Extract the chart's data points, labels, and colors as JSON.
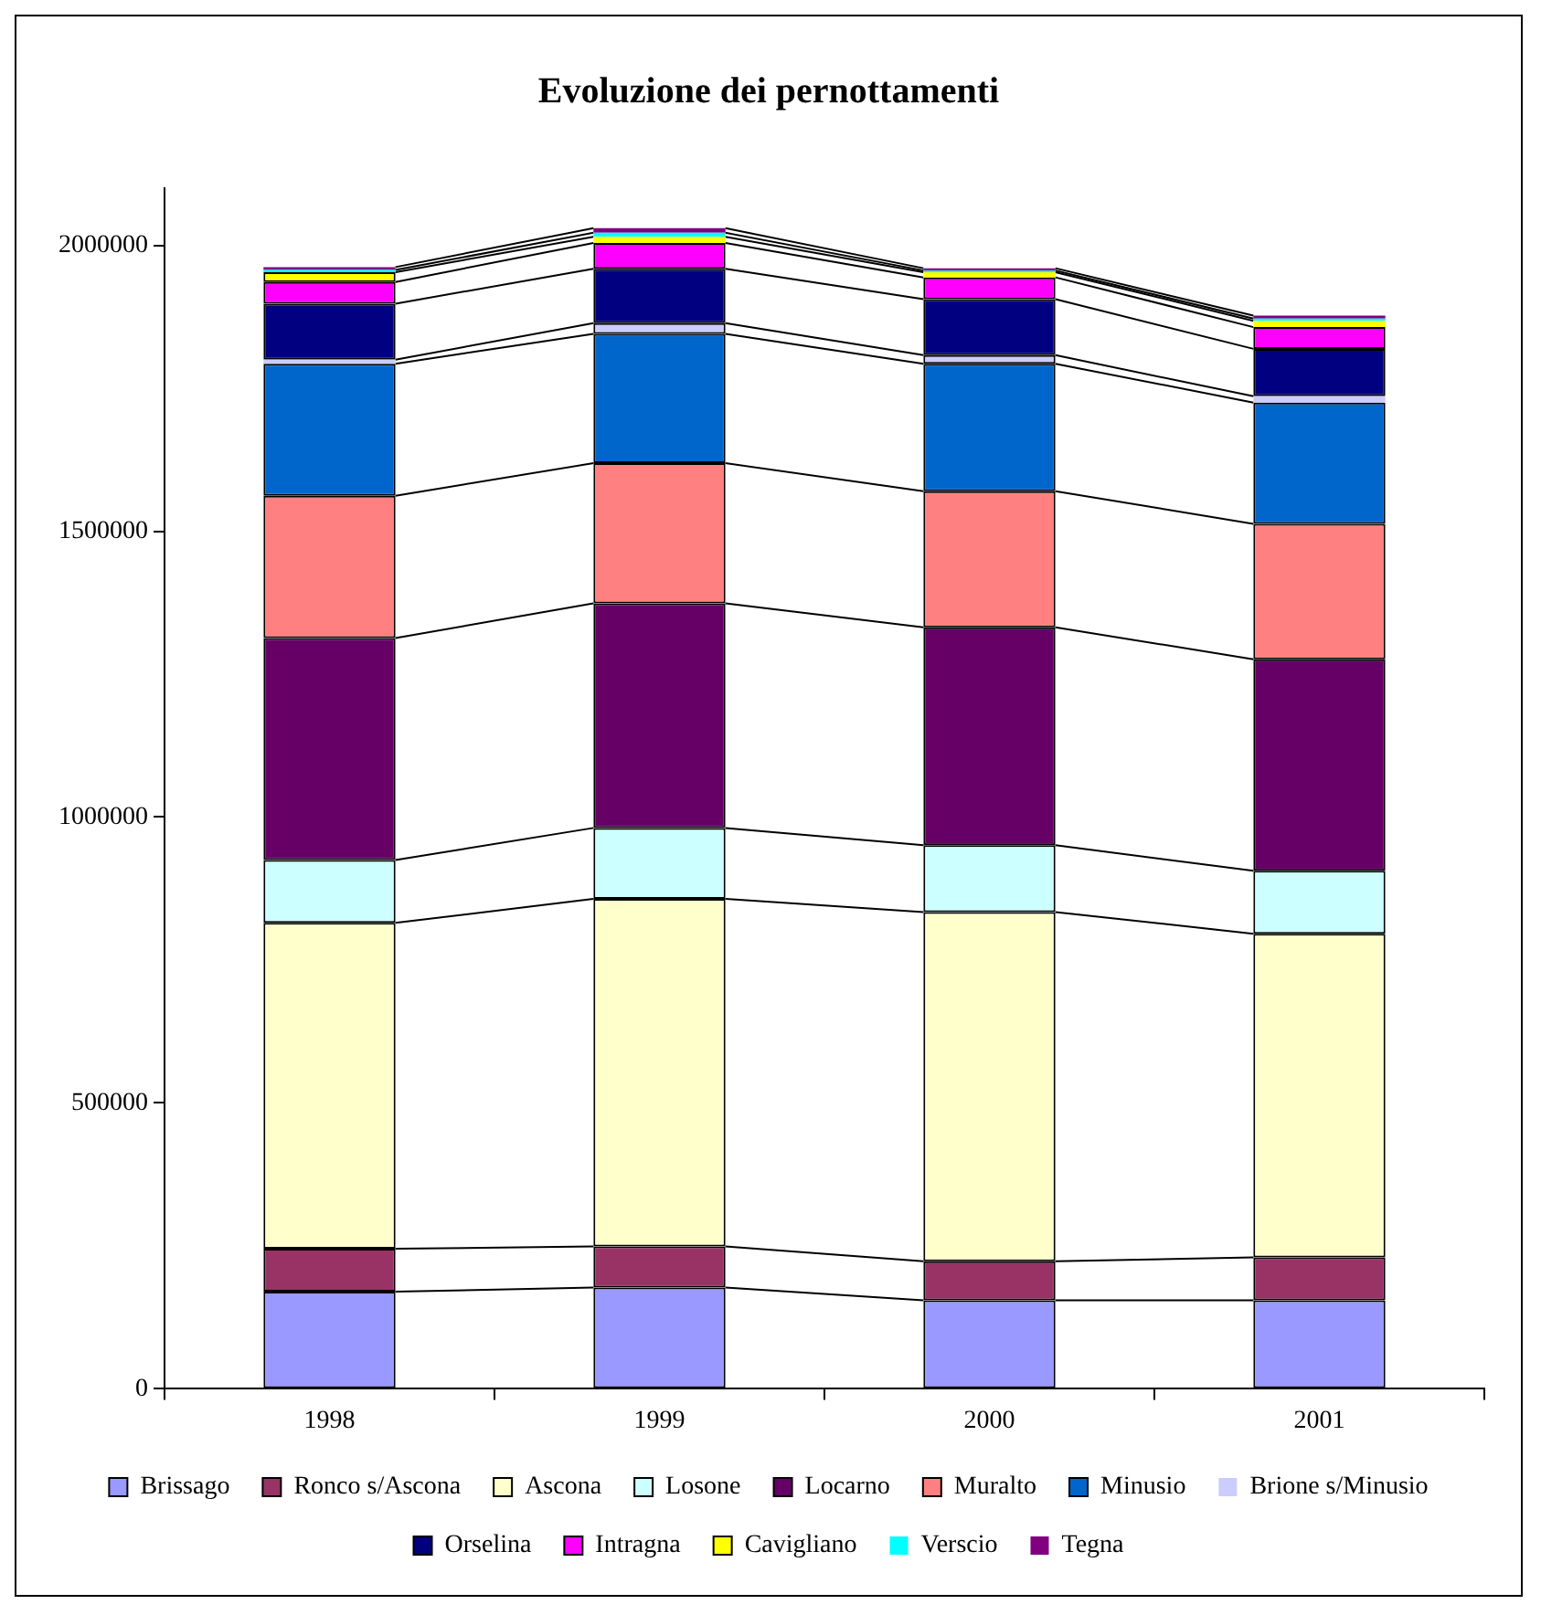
{
  "chart_data": {
    "type": "bar",
    "title": "Evoluzione dei pernottamenti",
    "categories": [
      "1998",
      "1999",
      "2000",
      "2001"
    ],
    "stacked": true,
    "ylim": [
      0,
      2100000
    ],
    "yticks": [
      0,
      500000,
      1000000,
      1500000,
      2000000
    ],
    "grid": false,
    "legend": "bottom",
    "series": [
      {
        "name": "Brissago",
        "color": "#9999ff",
        "values": [
          170000,
          177000,
          155000,
          155000
        ]
      },
      {
        "name": "Ronco s/Ascona",
        "color": "#993366",
        "values": [
          75000,
          72000,
          68000,
          75000
        ]
      },
      {
        "name": "Ascona",
        "color": "#ffffcc",
        "values": [
          570000,
          608000,
          611000,
          566000
        ]
      },
      {
        "name": "Losone",
        "color": "#ccffff",
        "values": [
          110000,
          124000,
          117000,
          110000
        ]
      },
      {
        "name": "Locarno",
        "color": "#660066",
        "values": [
          388000,
          393000,
          381000,
          370000
        ]
      },
      {
        "name": "Muralto",
        "color": "#ff8080",
        "values": [
          249000,
          245000,
          238000,
          237000
        ]
      },
      {
        "name": "Minusio",
        "color": "#0066cc",
        "values": [
          231000,
          226000,
          223000,
          212000
        ]
      },
      {
        "name": "Brione s/Minusio",
        "color": "#ccccff",
        "values": [
          7000,
          19000,
          15000,
          11000
        ]
      },
      {
        "name": "Orselina",
        "color": "#000080",
        "values": [
          98000,
          95000,
          98000,
          83000
        ]
      },
      {
        "name": "Intragna",
        "color": "#ff00ff",
        "values": [
          38000,
          45000,
          38000,
          38000
        ]
      },
      {
        "name": "Cavigliano",
        "color": "#ffff00",
        "values": [
          17000,
          11000,
          9000,
          11000
        ]
      },
      {
        "name": "Verscio",
        "color": "#00ffff",
        "values": [
          4000,
          7000,
          3000,
          4000
        ]
      },
      {
        "name": "Tegna",
        "color": "#800080",
        "values": [
          5000,
          8000,
          4000,
          5000
        ]
      }
    ]
  }
}
